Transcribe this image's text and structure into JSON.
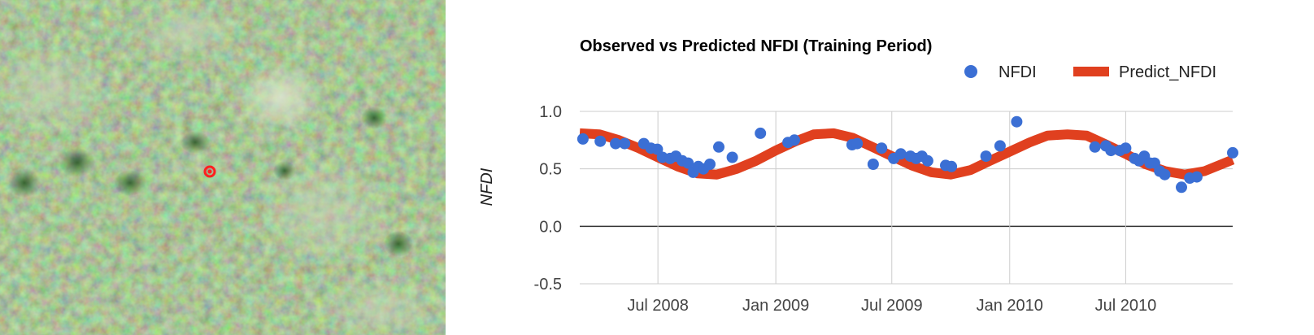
{
  "image_panel": {
    "marker_color": "#ff2020",
    "description_icon": "aerial-vegetation-photo"
  },
  "chart_data": {
    "type": "line",
    "title": "Observed vs Predicted NFDI (Training Period)",
    "xlabel": "",
    "ylabel": "NFDI",
    "x_ticks": [
      "Jul 2008",
      "Jan 2009",
      "Jul 2009",
      "Jan 2010",
      "Jul 2010"
    ],
    "x_tick_dates": [
      "2008-07-01",
      "2009-01-01",
      "2009-07-01",
      "2010-01-01",
      "2010-07-01"
    ],
    "xlim": [
      "2008-03-01",
      "2010-12-15"
    ],
    "ylim": [
      -0.5,
      1.0
    ],
    "y_ticks": [
      "1.0",
      "0.5",
      "0.0",
      "-0.5"
    ],
    "y_tick_values": [
      1.0,
      0.5,
      0.0,
      -0.5
    ],
    "grid": true,
    "legend_position": "top-right",
    "series": [
      {
        "name": "NFDI",
        "kind": "scatter",
        "color": "#3b6fd4",
        "points": [
          [
            "2008-03-06",
            0.76
          ],
          [
            "2008-04-02",
            0.74
          ],
          [
            "2008-04-26",
            0.72
          ],
          [
            "2008-05-10",
            0.72
          ],
          [
            "2008-06-09",
            0.72
          ],
          [
            "2008-06-20",
            0.68
          ],
          [
            "2008-06-30",
            0.67
          ],
          [
            "2008-07-08",
            0.6
          ],
          [
            "2008-07-20",
            0.59
          ],
          [
            "2008-07-29",
            0.61
          ],
          [
            "2008-08-08",
            0.57
          ],
          [
            "2008-08-17",
            0.55
          ],
          [
            "2008-08-25",
            0.47
          ],
          [
            "2008-09-02",
            0.52
          ],
          [
            "2008-09-10",
            0.5
          ],
          [
            "2008-09-20",
            0.54
          ],
          [
            "2008-10-04",
            0.69
          ],
          [
            "2008-10-25",
            0.6
          ],
          [
            "2008-12-08",
            0.81
          ],
          [
            "2009-01-20",
            0.73
          ],
          [
            "2009-01-30",
            0.75
          ],
          [
            "2009-04-30",
            0.71
          ],
          [
            "2009-05-08",
            0.72
          ],
          [
            "2009-06-02",
            0.54
          ],
          [
            "2009-06-15",
            0.68
          ],
          [
            "2009-07-04",
            0.59
          ],
          [
            "2009-07-15",
            0.63
          ],
          [
            "2009-07-30",
            0.61
          ],
          [
            "2009-08-08",
            0.59
          ],
          [
            "2009-08-17",
            0.61
          ],
          [
            "2009-08-26",
            0.57
          ],
          [
            "2009-09-23",
            0.53
          ],
          [
            "2009-10-02",
            0.52
          ],
          [
            "2009-11-25",
            0.61
          ],
          [
            "2009-12-17",
            0.7
          ],
          [
            "2010-01-12",
            0.91
          ],
          [
            "2010-05-14",
            0.69
          ],
          [
            "2010-05-31",
            0.7
          ],
          [
            "2010-06-08",
            0.66
          ],
          [
            "2010-06-22",
            0.66
          ],
          [
            "2010-07-01",
            0.68
          ],
          [
            "2010-07-15",
            0.59
          ],
          [
            "2010-07-22",
            0.57
          ],
          [
            "2010-07-30",
            0.61
          ],
          [
            "2010-08-08",
            0.55
          ],
          [
            "2010-08-15",
            0.55
          ],
          [
            "2010-08-23",
            0.48
          ],
          [
            "2010-08-31",
            0.45
          ],
          [
            "2010-09-26",
            0.34
          ],
          [
            "2010-10-09",
            0.42
          ],
          [
            "2010-10-20",
            0.43
          ],
          [
            "2010-12-15",
            0.64
          ]
        ]
      },
      {
        "name": "Predict_NFDI",
        "kind": "line",
        "color": "#e0401f",
        "points": [
          [
            "2008-03-01",
            0.81
          ],
          [
            "2008-04-01",
            0.8
          ],
          [
            "2008-05-01",
            0.75
          ],
          [
            "2008-06-01",
            0.68
          ],
          [
            "2008-07-01",
            0.6
          ],
          [
            "2008-08-01",
            0.52
          ],
          [
            "2008-09-01",
            0.46
          ],
          [
            "2008-10-01",
            0.45
          ],
          [
            "2008-11-01",
            0.5
          ],
          [
            "2008-12-01",
            0.57
          ],
          [
            "2009-01-01",
            0.66
          ],
          [
            "2009-02-01",
            0.74
          ],
          [
            "2009-03-01",
            0.8
          ],
          [
            "2009-04-01",
            0.81
          ],
          [
            "2009-05-01",
            0.77
          ],
          [
            "2009-06-01",
            0.69
          ],
          [
            "2009-07-01",
            0.61
          ],
          [
            "2009-08-01",
            0.53
          ],
          [
            "2009-09-01",
            0.47
          ],
          [
            "2009-10-01",
            0.45
          ],
          [
            "2009-11-01",
            0.49
          ],
          [
            "2009-12-01",
            0.57
          ],
          [
            "2010-01-01",
            0.65
          ],
          [
            "2010-02-01",
            0.73
          ],
          [
            "2010-03-01",
            0.79
          ],
          [
            "2010-04-01",
            0.8
          ],
          [
            "2010-05-01",
            0.79
          ],
          [
            "2010-06-01",
            0.71
          ],
          [
            "2010-07-01",
            0.63
          ],
          [
            "2010-08-01",
            0.54
          ],
          [
            "2010-09-01",
            0.48
          ],
          [
            "2010-10-01",
            0.45
          ],
          [
            "2010-11-01",
            0.48
          ],
          [
            "2010-12-15",
            0.58
          ]
        ]
      }
    ]
  }
}
